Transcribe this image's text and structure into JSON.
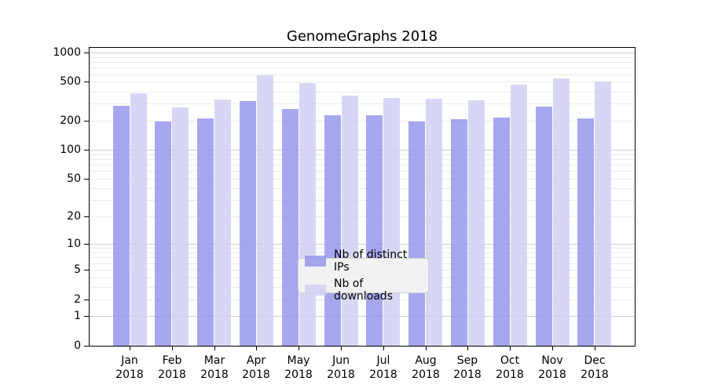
{
  "title": "GenomeGraphs 2018",
  "chart_data": {
    "type": "bar",
    "title": "GenomeGraphs 2018",
    "categories": [
      "Jan 2018",
      "Feb 2018",
      "Mar 2018",
      "Apr 2018",
      "May 2018",
      "Jun 2018",
      "Jul 2018",
      "Aug 2018",
      "Sep 2018",
      "Oct 2018",
      "Nov 2018",
      "Dec 2018"
    ],
    "series": [
      {
        "name": "Nb of distinct IPs",
        "color": "#9898ec",
        "values": [
          286,
          197,
          210,
          317,
          264,
          227,
          227,
          196,
          208,
          215,
          280,
          211
        ]
      },
      {
        "name": "Nb of downloads",
        "color": "#d0d0f3",
        "values": [
          382,
          272,
          327,
          581,
          488,
          359,
          343,
          337,
          323,
          468,
          543,
          504
        ]
      }
    ],
    "xlabel": "",
    "ylabel": "",
    "y_axis": {
      "scale": "log10(1+v)",
      "tick_values": [
        0,
        1,
        2,
        5,
        10,
        20,
        50,
        100,
        200,
        500,
        1000
      ],
      "tick_labels": [
        "0",
        "1",
        "2",
        "5",
        "10",
        "20",
        "50",
        "100",
        "200",
        "500",
        "1000"
      ],
      "ylim": [
        0,
        1150
      ],
      "grid": "horizontal major+minor log gridlines"
    },
    "legend": {
      "position": "lower center",
      "entries": [
        "Nb of distinct IPs",
        "Nb of downloads"
      ]
    },
    "bar_alpha": 0.85
  },
  "colors": {
    "background": "#ffffff",
    "spine": "#000000",
    "grid_major": "#cfcfcf",
    "grid_minor": "#ebebeb",
    "legend_bg": "#f2f2f2",
    "legend_border": "#d2d2d2",
    "bar_distinct_ips": "#9898ec",
    "bar_downloads": "#d0d0f3"
  }
}
